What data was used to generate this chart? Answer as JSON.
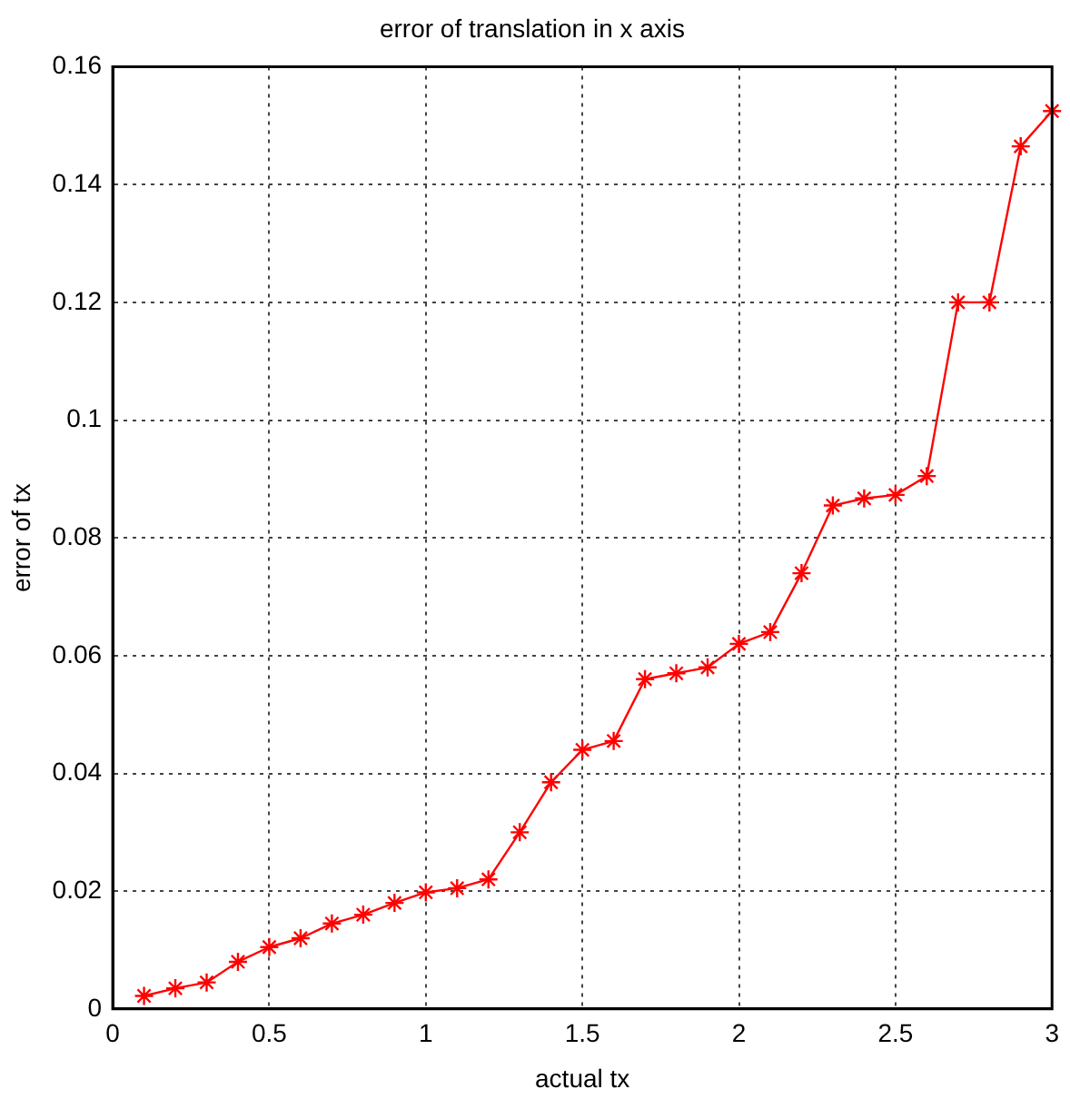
{
  "chart_data": {
    "type": "line",
    "title": "error of translation in x axis",
    "xlabel": "actual tx",
    "ylabel": "error of tx",
    "x": [
      0.1,
      0.2,
      0.3,
      0.4,
      0.5,
      0.6,
      0.7,
      0.8,
      0.9,
      1.0,
      1.1,
      1.2,
      1.3,
      1.4,
      1.5,
      1.6,
      1.7,
      1.8,
      1.9,
      2.0,
      2.1,
      2.2,
      2.3,
      2.4,
      2.5,
      2.6,
      2.7,
      2.8,
      2.9,
      3.0
    ],
    "series": [
      {
        "color": "#ff0000",
        "values": [
          0.0022,
          0.0035,
          0.0045,
          0.008,
          0.0105,
          0.012,
          0.0145,
          0.016,
          0.018,
          0.0198,
          0.0205,
          0.022,
          0.03,
          0.0385,
          0.044,
          0.0455,
          0.056,
          0.057,
          0.058,
          0.062,
          0.064,
          0.074,
          0.0855,
          0.0867,
          0.0873,
          0.0905,
          0.12,
          0.12,
          0.1465,
          0.1525
        ]
      }
    ],
    "xlim": [
      0,
      3
    ],
    "xticks": [
      0,
      0.5,
      1,
      1.5,
      2,
      2.5,
      3
    ],
    "ylim": [
      0,
      0.16
    ],
    "yticks": [
      0,
      0.02,
      0.04,
      0.06,
      0.08,
      0.1,
      0.12,
      0.14,
      0.16
    ],
    "grid": true,
    "marker": "cross",
    "line_style": "solid"
  }
}
